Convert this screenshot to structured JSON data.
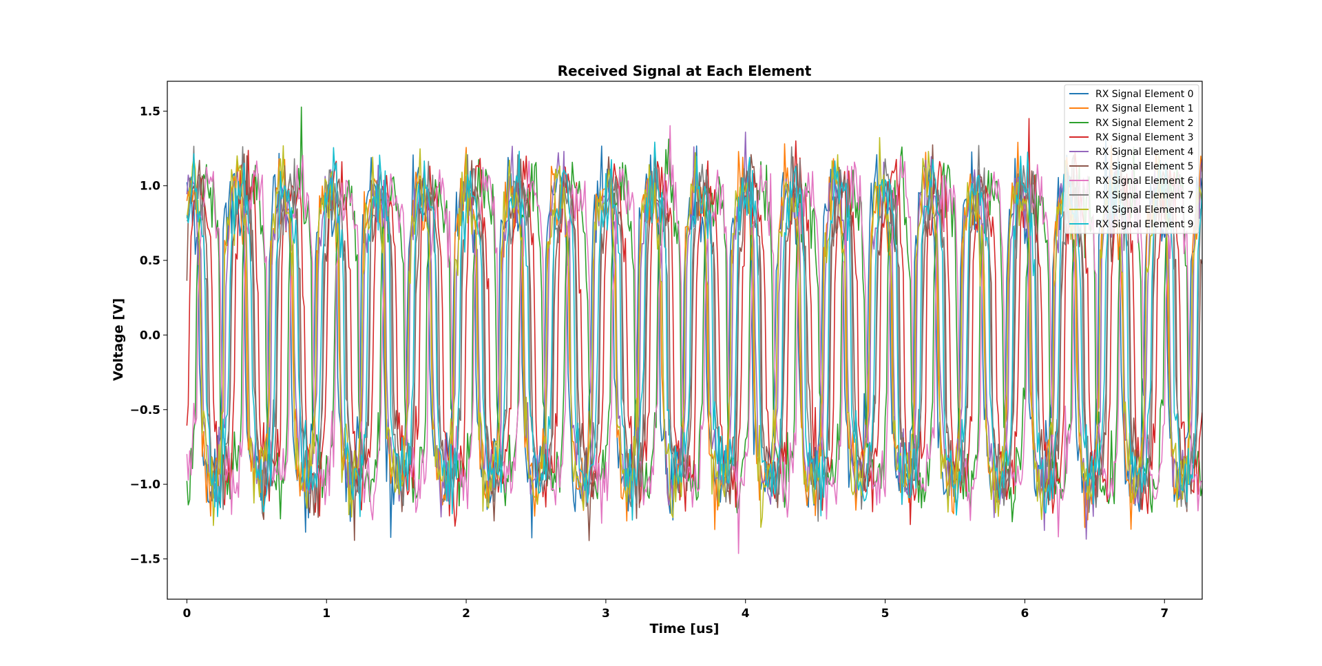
{
  "chart_data": {
    "type": "line",
    "title": "Received Signal at Each Element",
    "xlabel": "Time [us]",
    "ylabel": "Voltage [V]",
    "xlim": [
      -0.14,
      7.27
    ],
    "ylim": [
      -1.77,
      1.7
    ],
    "xticks": [
      0,
      1,
      2,
      3,
      4,
      5,
      6,
      7
    ],
    "xtick_labels": [
      "0",
      "1",
      "2",
      "3",
      "4",
      "5",
      "6",
      "7"
    ],
    "yticks": [
      -1.5,
      -1.0,
      -0.5,
      0.0,
      0.5,
      1.0,
      1.5
    ],
    "ytick_labels": [
      "−1.5",
      "−1.0",
      "−0.5",
      "0.0",
      "0.5",
      "1.0",
      "1.5"
    ],
    "grid": false,
    "legend_position": "top-right",
    "signal_model": {
      "description": "noisy square-ish sinusoid per element, amplitude about 1 V, period about 0.33 us",
      "amplitude": 1.0,
      "period_us": 0.33,
      "noise_std": 0.12,
      "x_start": 0,
      "x_end": 7.27,
      "x_step": 0.01
    },
    "series": [
      {
        "name": "RX Signal Element 0",
        "color": "#1f77b4",
        "phase": 1.45
      },
      {
        "name": "RX Signal Element 1",
        "color": "#ff7f0e",
        "phase": 1.25
      },
      {
        "name": "RX Signal Element 2",
        "color": "#2ca02c",
        "phase": -1.3
      },
      {
        "name": "RX Signal Element 3",
        "color": "#d62728",
        "phase": -0.3
      },
      {
        "name": "RX Signal Element 4",
        "color": "#9467bd",
        "phase": 1.05
      },
      {
        "name": "RX Signal Element 5",
        "color": "#8c564b",
        "phase": 0.2
      },
      {
        "name": "RX Signal Element 6",
        "color": "#e377c2",
        "phase": -1.5
      },
      {
        "name": "RX Signal Element 7",
        "color": "#7f7f7f",
        "phase": 0.35
      },
      {
        "name": "RX Signal Element 8",
        "color": "#bcbd22",
        "phase": 1.2
      },
      {
        "name": "RX Signal Element 9",
        "color": "#17becf",
        "phase": 0.55
      }
    ]
  }
}
